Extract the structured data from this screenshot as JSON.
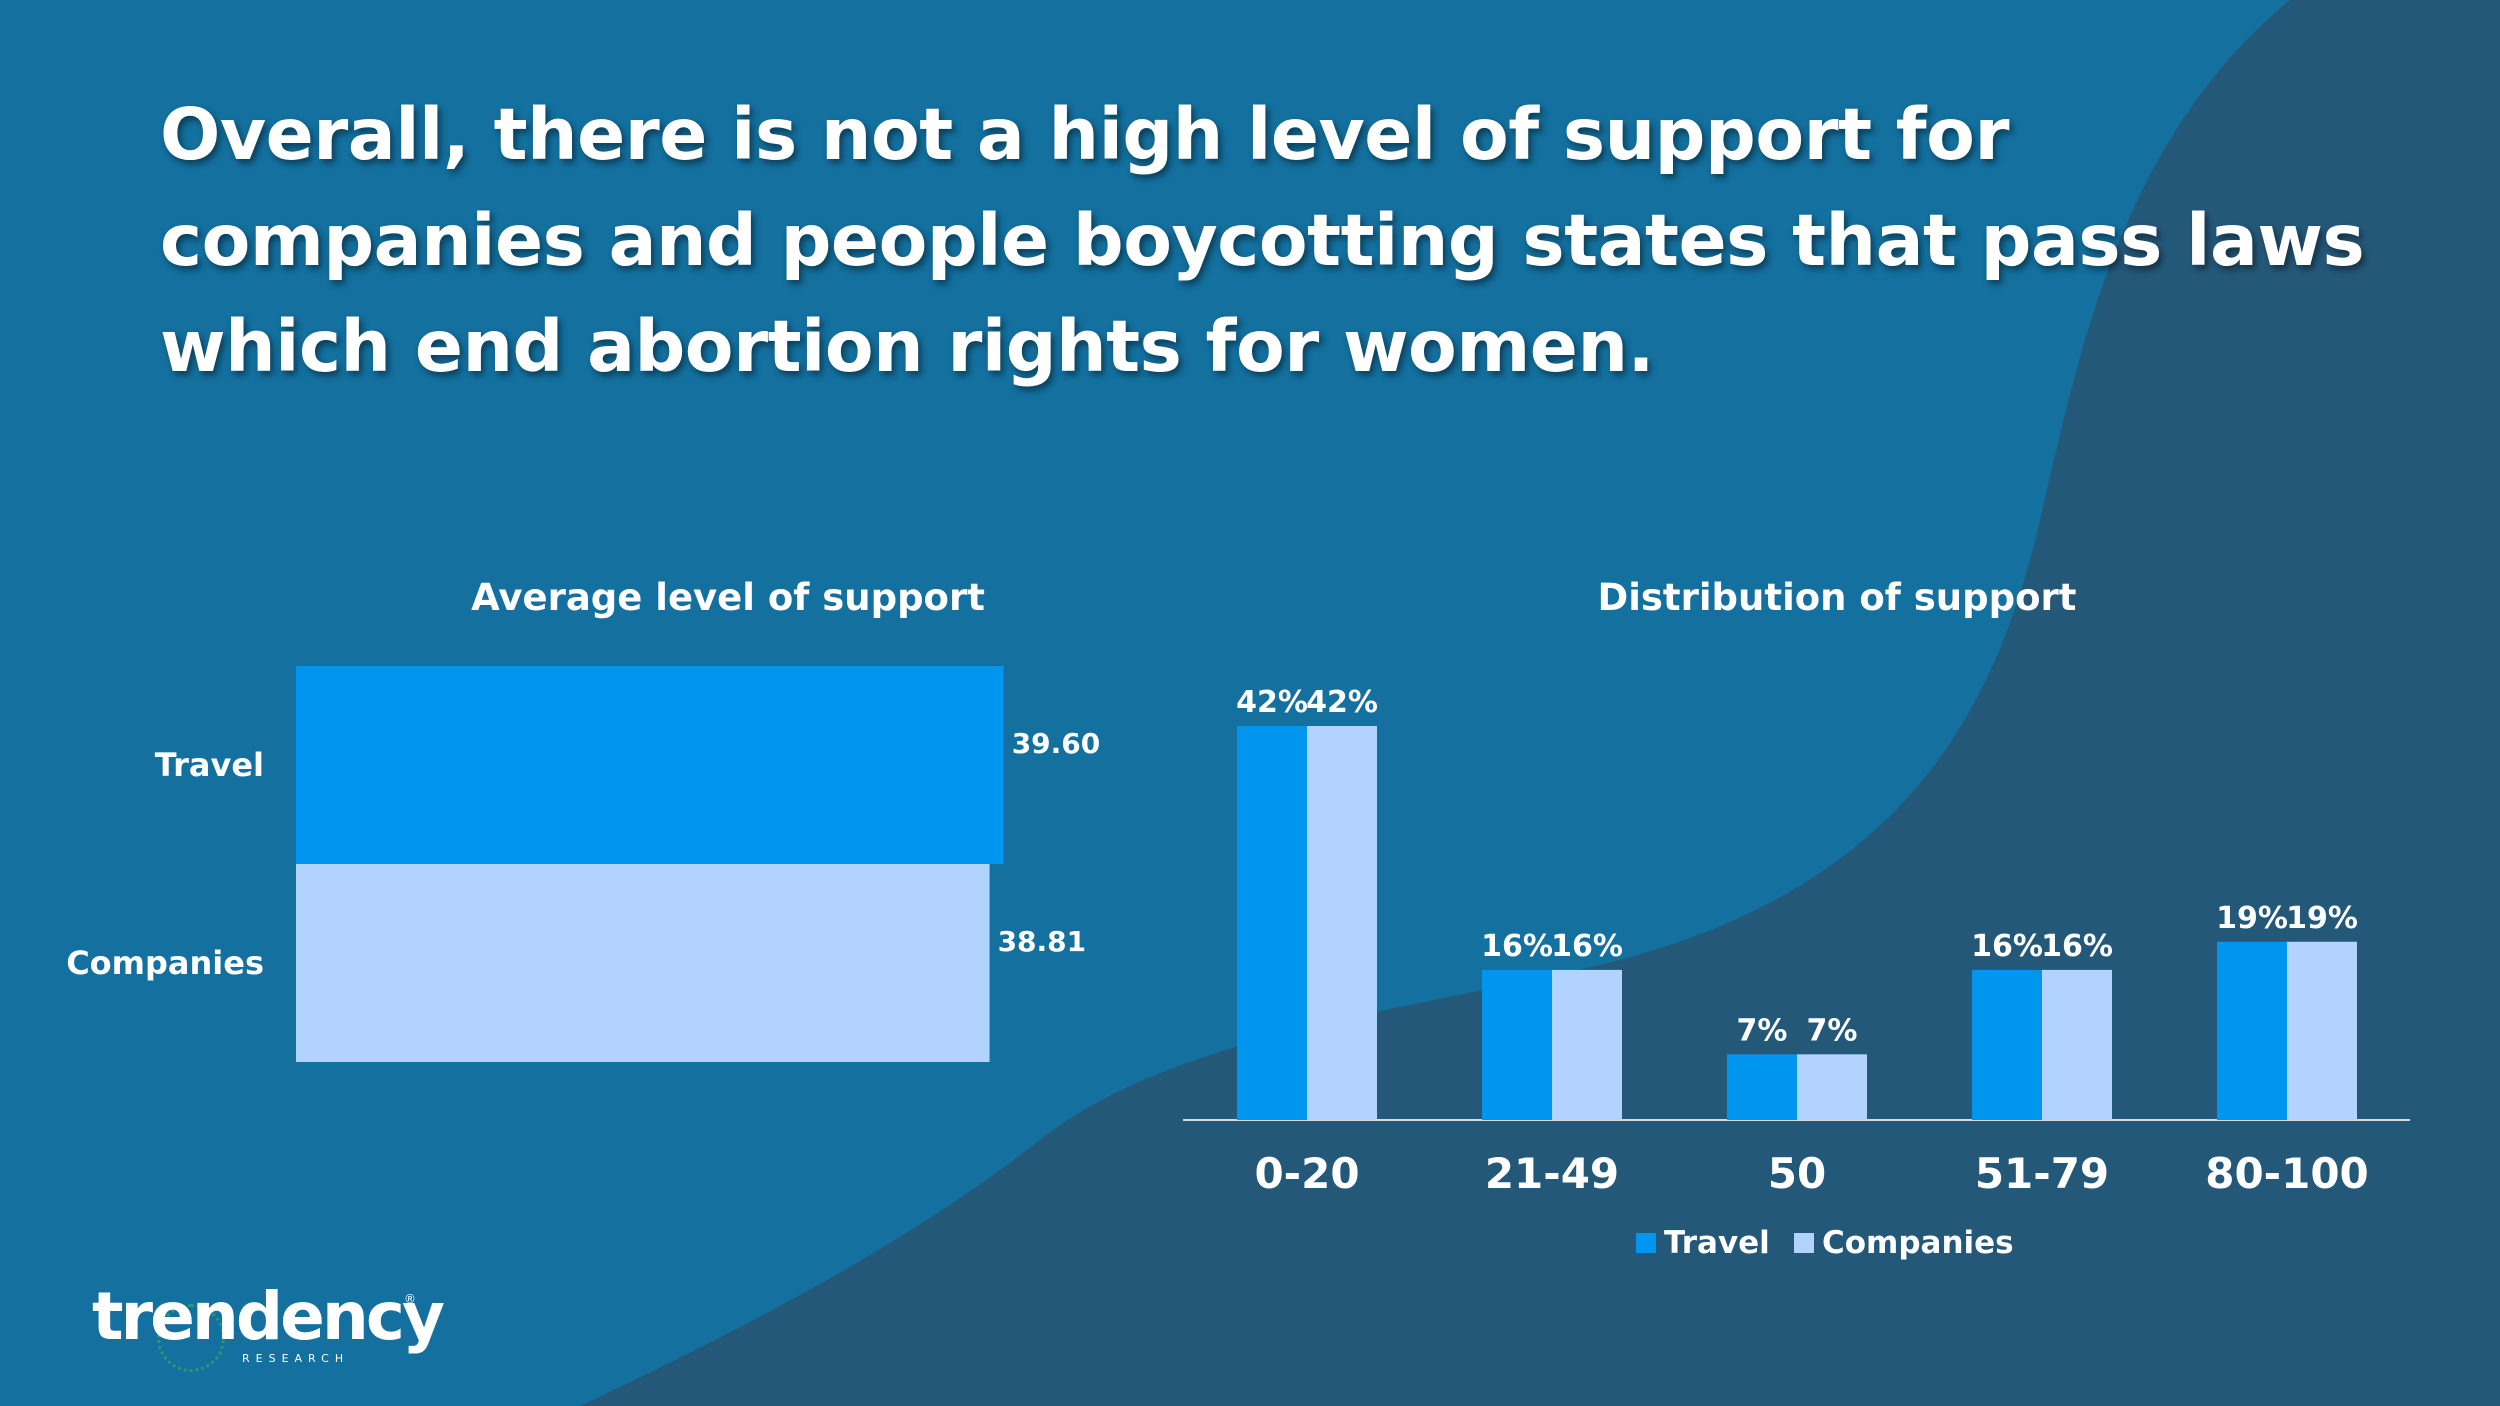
{
  "slide": {
    "title": "Overall, there is not a high level of support for companies and people boycotting states that pass laws which end abortion rights for women.",
    "colors": {
      "background": "#13709f",
      "dark_wave": "#245879",
      "travel": "#0096ef",
      "companies": "#b3d3ff"
    }
  },
  "chart_data": [
    {
      "type": "bar",
      "orientation": "horizontal",
      "title": "Average level of support",
      "categories": [
        "Travel",
        "Companies"
      ],
      "values": [
        39.6,
        38.81
      ],
      "value_labels": [
        "39.60",
        "38.81"
      ],
      "xlim": [
        0,
        40.4
      ]
    },
    {
      "type": "bar",
      "title": "Distribution of support",
      "categories": [
        "0-20",
        "21-49",
        "50",
        "51-79",
        "80-100"
      ],
      "series": [
        {
          "name": "Travel",
          "values": [
            42,
            16,
            7,
            16,
            19
          ],
          "labels": [
            "42%",
            "16%",
            "7%",
            "16%",
            "19%"
          ]
        },
        {
          "name": "Companies",
          "values": [
            42,
            16,
            7,
            16,
            19
          ],
          "labels": [
            "42%",
            "16%",
            "7%",
            "16%",
            "19%"
          ]
        }
      ],
      "ylim": [
        0,
        42
      ],
      "legend": "bottom"
    }
  ],
  "logo": {
    "wordmark": "trendency",
    "subtitle": "RESEARCH",
    "mark": "®"
  }
}
